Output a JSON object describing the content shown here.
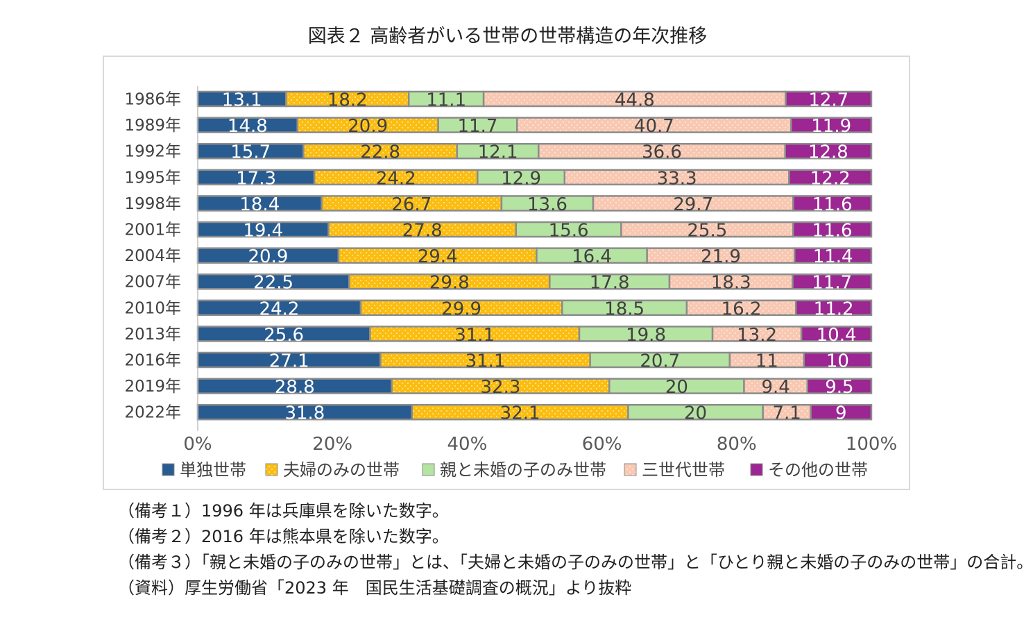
{
  "chart_data": {
    "type": "bar",
    "orientation": "horizontal",
    "stacked": "percent",
    "title": "図表２ 高齢者がいる世帯の世帯構造の年次推移",
    "categories": [
      "1986年",
      "1989年",
      "1992年",
      "1995年",
      "1998年",
      "2001年",
      "2004年",
      "2007年",
      "2010年",
      "2013年",
      "2016年",
      "2019年",
      "2022年"
    ],
    "series": [
      {
        "name": "単独世帯",
        "color": "#285b90",
        "pattern": "solid",
        "label_color": "#ffffff",
        "values": [
          13.1,
          14.8,
          15.7,
          17.3,
          18.4,
          19.4,
          20.9,
          22.5,
          24.2,
          25.6,
          27.1,
          28.8,
          31.8
        ]
      },
      {
        "name": "夫婦のみの世帯",
        "color": "#fbbd11",
        "pattern": "dots",
        "label_color": "#404040",
        "values": [
          18.2,
          20.9,
          22.8,
          24.2,
          26.7,
          27.8,
          29.4,
          29.8,
          29.9,
          31.1,
          31.1,
          32.3,
          32.1
        ]
      },
      {
        "name": "親と未婚の子のみ世帯",
        "color": "#b5e3a1",
        "pattern": "solid",
        "label_color": "#404040",
        "values": [
          11.1,
          11.7,
          12.1,
          12.9,
          13.6,
          15.6,
          16.4,
          17.8,
          18.5,
          19.8,
          20.7,
          20,
          20
        ]
      },
      {
        "name": "三世代世帯",
        "color": "#f8c8b2",
        "pattern": "dots",
        "label_color": "#404040",
        "values": [
          44.8,
          40.7,
          36.6,
          33.3,
          29.7,
          25.5,
          21.9,
          18.3,
          16.2,
          13.2,
          11,
          9.4,
          7.1
        ]
      },
      {
        "name": "その他の世帯",
        "color": "#9c2692",
        "pattern": "solid",
        "label_color": "#ffffff",
        "values": [
          12.7,
          11.9,
          12.8,
          12.2,
          11.6,
          11.6,
          11.4,
          11.7,
          11.2,
          10.4,
          10,
          9.5,
          9
        ]
      }
    ],
    "x_ticks": [
      "0%",
      "20%",
      "40%",
      "60%",
      "80%",
      "100%"
    ],
    "xlim": [
      0,
      100
    ],
    "legend_position": "bottom"
  },
  "notes": [
    "（備考１）1996 年は兵庫県を除いた数字。",
    "（備考２）2016 年は熊本県を除いた数字。",
    "（備考３）「親と未婚の子のみの世帯」とは、「夫婦と未婚の子のみの世帯」と「ひとり親と未婚の子のみの世帯」の合計。",
    "（資料）厚生労働省「2023 年　国民生活基礎調査の概況」より抜粋"
  ]
}
